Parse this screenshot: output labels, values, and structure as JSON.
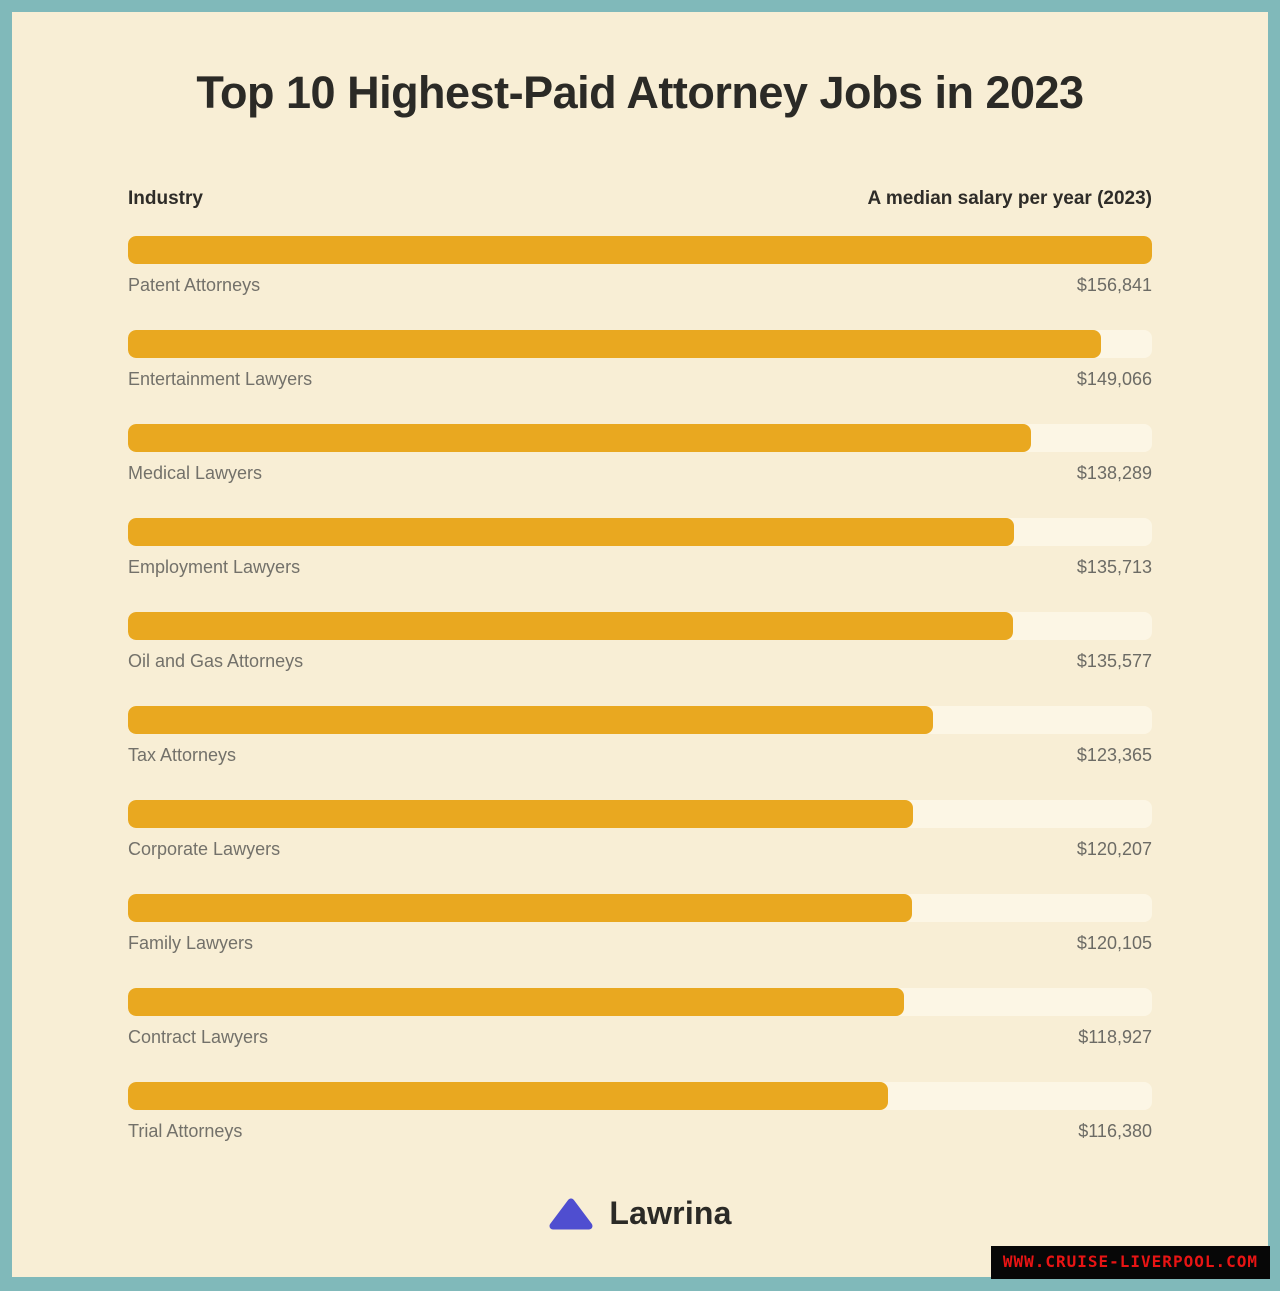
{
  "title": "Top 10 Highest-Paid Attorney Jobs in 2023",
  "columns": {
    "left": "Industry",
    "right": "A median salary per year (2023)"
  },
  "chart_data": {
    "type": "bar",
    "orientation": "horizontal",
    "title": "Top 10 Highest-Paid Attorney Jobs in 2023",
    "ylabel": "Industry",
    "xlabel": "A median salary per year (2023)",
    "xlim": [
      0,
      156841
    ],
    "grid": false,
    "categories": [
      "Patent Attorneys",
      "Entertainment Lawyers",
      "Medical Lawyers",
      "Employment Lawyers",
      "Oil and Gas Attorneys",
      "Tax Attorneys",
      "Corporate Lawyers",
      "Family Lawyers",
      "Contract Lawyers",
      "Trial Attorneys"
    ],
    "values": [
      156841,
      149066,
      138289,
      135713,
      135577,
      123365,
      120207,
      120105,
      118927,
      116380
    ],
    "value_labels": [
      "$156,841",
      "$149,066",
      "$138,289",
      "$135,713",
      "$135,577",
      "$123,365",
      "$120,207",
      "$120,105",
      "$118,927",
      "$116,380"
    ],
    "max_value": 156841,
    "bar_color": "#e9a820",
    "track_color": "#fcf6e5"
  },
  "footer": {
    "brand": "Lawrina"
  },
  "watermark": {
    "text": "WWW.CRUISE-LIVERPOOL.COM"
  },
  "colors": {
    "border": "#80b9ba",
    "background": "#f8eed5",
    "bar": "#e9a820",
    "track": "#fcf6e5",
    "title_text": "#2b2a26",
    "label_text": "#73716a",
    "brand_triangle": "#4f4ed0",
    "watermark_bg": "#070707",
    "watermark_text": "#e81414"
  }
}
